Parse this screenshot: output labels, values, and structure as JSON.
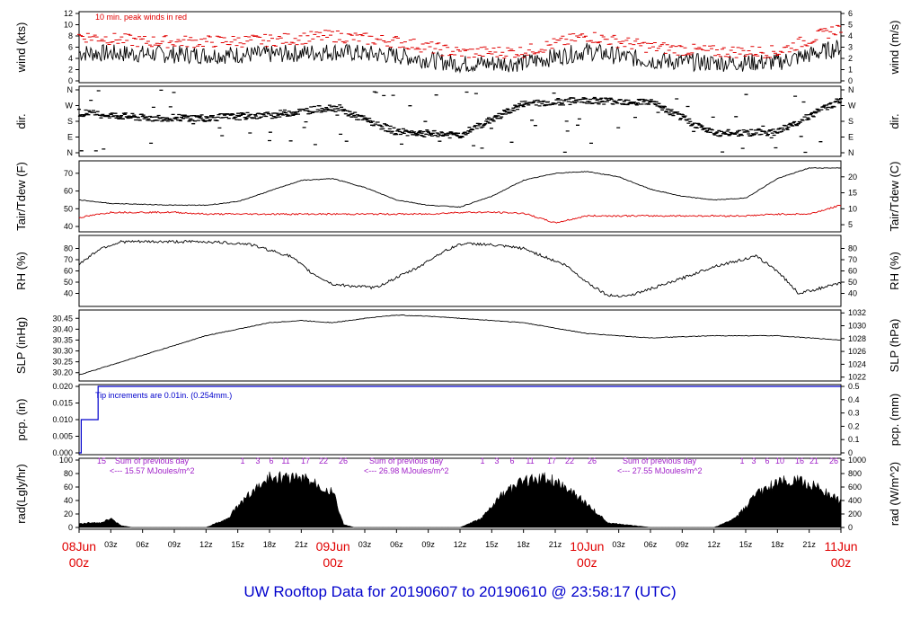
{
  "title": "UW Rooftop Data for 20190607  to  20190610 @ 23:58:17  (UTC)",
  "colors": {
    "primary": "#000000",
    "peak": "#e00000",
    "dewpoint": "#e00000",
    "rain": "#0000cc",
    "annotation": "#a020c8",
    "title": "#0000cc",
    "date_label": "#e00000"
  },
  "x_axis": {
    "hour_ticks": [
      "03z",
      "06z",
      "09z",
      "12z",
      "15z",
      "18z",
      "21z",
      "03z",
      "06z",
      "09z",
      "12z",
      "15z",
      "18z",
      "21z",
      "03z",
      "06z",
      "09z",
      "12z",
      "15z",
      "18z",
      "21z"
    ],
    "date_labels": [
      {
        "date": "08Jun",
        "time": "00z"
      },
      {
        "date": "09Jun",
        "time": "00z"
      },
      {
        "date": "10Jun",
        "time": "00z"
      },
      {
        "date": "11Jun",
        "time": "00z"
      }
    ]
  },
  "chart_data": [
    {
      "id": "wind",
      "type": "line",
      "ylabel_left": "wind (kts)",
      "ylabel_right": "wind (m/s)",
      "ylim": [
        0,
        12
      ],
      "yticks_left": [
        "0",
        "2",
        "4",
        "6",
        "8",
        "10",
        "12"
      ],
      "yticks_right": [
        "0",
        "1",
        "2",
        "3",
        "4",
        "5",
        "6"
      ],
      "annotation": "10 min. peak winds in red",
      "x_hours": [
        0,
        6,
        12,
        18,
        24,
        30,
        36,
        42,
        48,
        54,
        60,
        66,
        72
      ],
      "series": [
        {
          "name": "wind",
          "values": [
            5,
            4.8,
            4.6,
            4.7,
            5.2,
            4.5,
            3,
            3.2,
            5.3,
            3.6,
            3.2,
            3.3,
            6
          ]
        },
        {
          "name": "10 min. peak winds",
          "values": [
            8,
            7,
            7,
            7.2,
            8,
            7,
            5,
            5.2,
            8,
            6,
            5.2,
            5.2,
            9.5
          ]
        }
      ]
    },
    {
      "id": "dir",
      "type": "scatter",
      "ylabel_left": "dir.",
      "ylabel_right": "dir.",
      "yticks_left": [
        "N",
        "W",
        "S",
        "E",
        "N"
      ],
      "yticks_right": [
        "N",
        "W",
        "S",
        "E",
        "N"
      ],
      "x_hours": [
        0,
        6,
        12,
        18,
        24,
        30,
        36,
        42,
        48,
        54,
        60,
        66,
        72
      ],
      "values": [
        230,
        200,
        200,
        215,
        260,
        120,
        100,
        280,
        300,
        290,
        110,
        120,
        300
      ]
    },
    {
      "id": "temp",
      "type": "line",
      "ylabel_left": "Tair/Tdew (F)",
      "ylabel_right": "Tair/Tdew (C)",
      "ylim": [
        38,
        76
      ],
      "yticks_left": [
        "40",
        "50",
        "60",
        "70"
      ],
      "yticks_right": [
        "5",
        "10",
        "15",
        "20"
      ],
      "x_hours": [
        0,
        3,
        6,
        9,
        12,
        15,
        18,
        21,
        24,
        27,
        30,
        33,
        36,
        39,
        42,
        45,
        48,
        51,
        54,
        57,
        60,
        63,
        66,
        69,
        72
      ],
      "series": [
        {
          "name": "Tair",
          "values": [
            55,
            53,
            52.5,
            52,
            52,
            54,
            60,
            66,
            67,
            62,
            55,
            52,
            51,
            57,
            66,
            70,
            71,
            68,
            61,
            57,
            55,
            56,
            67,
            73,
            73
          ]
        },
        {
          "name": "Tdew",
          "values": [
            45,
            48,
            48,
            48,
            47,
            47,
            47,
            47,
            47,
            47,
            47,
            47,
            48,
            48,
            47.5,
            42,
            46,
            46,
            46,
            46,
            46,
            46,
            47,
            47,
            52
          ]
        }
      ]
    },
    {
      "id": "rh",
      "type": "line",
      "ylabel_left": "RH (%)",
      "ylabel_right": "RH (%)",
      "ylim": [
        30,
        90
      ],
      "yticks_left": [
        "40",
        "50",
        "60",
        "70",
        "80"
      ],
      "yticks_right": [
        "40",
        "50",
        "60",
        "70",
        "80"
      ],
      "x_hours": [
        0,
        2,
        4,
        8,
        12,
        16,
        20,
        22,
        24,
        28,
        32,
        34,
        36,
        38,
        42,
        46,
        48,
        50,
        52,
        56,
        60,
        64,
        66,
        68,
        72
      ],
      "values": [
        66,
        80,
        86,
        86,
        86,
        84,
        73,
        58,
        48,
        45,
        63,
        75,
        84,
        84,
        80,
        65,
        50,
        38,
        38,
        50,
        64,
        73,
        60,
        40,
        49
      ]
    },
    {
      "id": "slp",
      "type": "line",
      "ylabel_left": "SLP (inHg)",
      "ylabel_right": "SLP (hPa)",
      "ylim": [
        30.17,
        30.48
      ],
      "yticks_left": [
        "30.20",
        "30.25",
        "30.30",
        "30.35",
        "30.40",
        "30.45"
      ],
      "yticks_right": [
        "1022",
        "1024",
        "1026",
        "1028",
        "1030",
        "1032"
      ],
      "x_hours": [
        0,
        6,
        12,
        18,
        21,
        24,
        27,
        30,
        33,
        36,
        42,
        48,
        54,
        60,
        66,
        72
      ],
      "values": [
        30.19,
        30.28,
        30.37,
        30.43,
        30.44,
        30.43,
        30.45,
        30.465,
        30.46,
        30.45,
        30.43,
        30.38,
        30.36,
        30.37,
        30.37,
        30.35
      ]
    },
    {
      "id": "pcp",
      "type": "line",
      "ylabel_left": "pcp. (in)",
      "ylabel_right": "pcp. (mm)",
      "ylim": [
        0,
        0.02
      ],
      "yticks_left": [
        "0.000",
        "0.005",
        "0.010",
        "0.015",
        "0.020"
      ],
      "yticks_right": [
        "0",
        "0.1",
        "0.2",
        "0.3",
        "0.4",
        "0.5"
      ],
      "annotation": "Tip increments are 0.01in. (0.254mm.)",
      "x_hours": [
        0,
        0.2,
        0.2,
        1.8,
        1.8,
        72
      ],
      "values": [
        0,
        0,
        0.01,
        0.01,
        0.02,
        0.02
      ]
    },
    {
      "id": "rad",
      "type": "area",
      "ylabel_left": "rad(Lgly/hr)",
      "ylabel_right": "rad (W/m^2)",
      "ylim": [
        0,
        100
      ],
      "yticks_left": [
        "0",
        "20",
        "40",
        "60",
        "80",
        "100"
      ],
      "yticks_right": [
        "0",
        "200",
        "400",
        "600",
        "800",
        "1000"
      ],
      "hour_marks": [
        "15",
        "1",
        "3",
        "6",
        "11",
        "17",
        "22",
        "26",
        "1",
        "3",
        "6",
        "11",
        "17",
        "22",
        "26",
        "1",
        "3",
        "6",
        "10",
        "16",
        "21",
        "26"
      ],
      "summaries": [
        {
          "line1": "Sum of previous day",
          "line2": "<--- 15.57 MJoules/m^2"
        },
        {
          "line1": "Sum of previous day",
          "line2": "<--- 26.98 MJoules/m^2"
        },
        {
          "line1": "Sum of previous day",
          "line2": "<--- 27.55 MJoules/m^2"
        }
      ],
      "x_hours": [
        0,
        1,
        2,
        3,
        4,
        5,
        10,
        12,
        14,
        16,
        18,
        20,
        22,
        24,
        25,
        26,
        30,
        33,
        36,
        38,
        40,
        42,
        44,
        46,
        48,
        50,
        54,
        57,
        60,
        62,
        64,
        66,
        68,
        70,
        72
      ],
      "values": [
        6,
        8,
        8,
        15,
        3,
        0,
        0,
        0,
        15,
        55,
        85,
        85,
        80,
        60,
        5,
        0,
        0,
        0,
        0,
        15,
        55,
        80,
        84,
        70,
        40,
        8,
        0,
        0,
        0,
        15,
        55,
        78,
        80,
        65,
        45
      ]
    }
  ]
}
